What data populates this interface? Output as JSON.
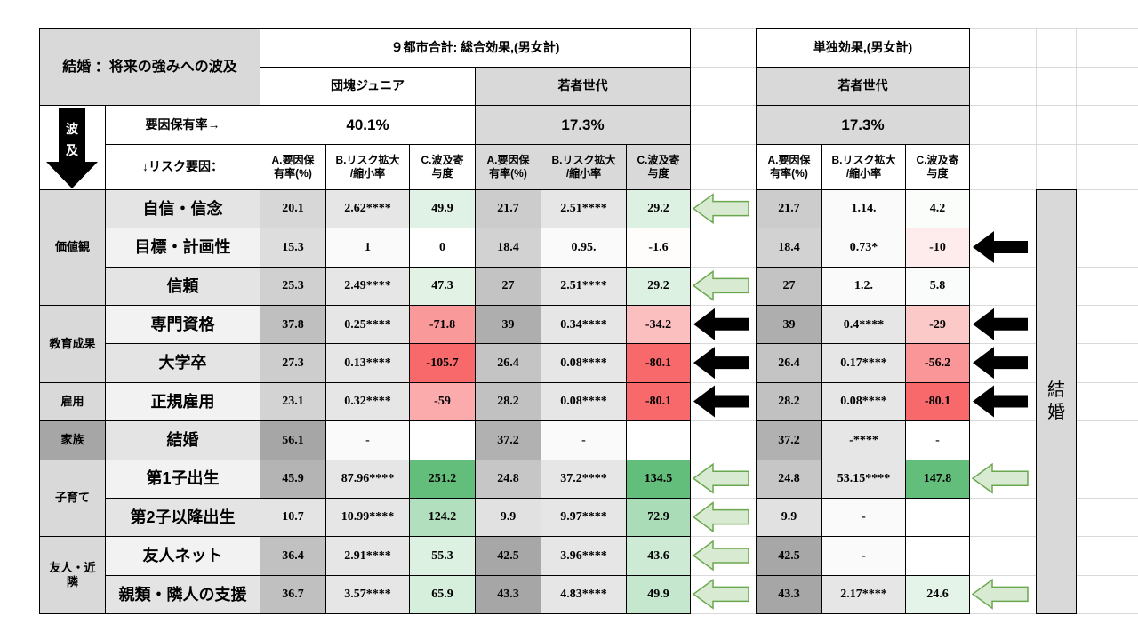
{
  "header": {
    "title": "結婚 ：将来の強みへの波及",
    "total_effect": "９都市合計: 総合効果,(男女計)",
    "single_effect": "単独効果,(男女計)",
    "blocks": [
      "団塊ジュニア",
      "若者世代",
      "若者世代"
    ],
    "rate_label": "要因保有率→",
    "rates": [
      "40.1%",
      "17.3%",
      "17.3%"
    ],
    "risk_label": "↓リスク要因：",
    "flow": [
      "波",
      "及"
    ],
    "sub_headers": [
      "A.要因保\n有率(%)",
      "B.リスク拡大\n/縮小率",
      "C.波及寄\n与度"
    ]
  },
  "side_label": "結\n婚",
  "groups": [
    {
      "label": "価値観",
      "rows": [
        {
          "factor": "自信・信念",
          "cells": [
            [
              "20.1",
              "2.62****",
              "49.9"
            ],
            [
              "21.7",
              "2.51****",
              "29.2"
            ],
            [
              "21.7",
              "1.14.",
              "4.2"
            ]
          ]
        },
        {
          "factor": "目標・計画性",
          "cells": [
            [
              "15.3",
              "1",
              "0"
            ],
            [
              "18.4",
              "0.95.",
              "-1.6"
            ],
            [
              "18.4",
              "0.73*",
              "-10"
            ]
          ]
        },
        {
          "factor": "信頼",
          "cells": [
            [
              "25.3",
              "2.49****",
              "47.3"
            ],
            [
              "27",
              "2.51****",
              "29.2"
            ],
            [
              "27",
              "1.2.",
              "5.8"
            ]
          ]
        }
      ]
    },
    {
      "label": "教育成果",
      "rows": [
        {
          "factor": "専門資格",
          "cells": [
            [
              "37.8",
              "0.25****",
              "-71.8"
            ],
            [
              "39",
              "0.34****",
              "-34.2"
            ],
            [
              "39",
              "0.4****",
              "-29"
            ]
          ]
        },
        {
          "factor": "大学卒",
          "cells": [
            [
              "27.3",
              "0.13****",
              "-105.7"
            ],
            [
              "26.4",
              "0.08****",
              "-80.1"
            ],
            [
              "26.4",
              "0.17****",
              "-56.2"
            ]
          ]
        }
      ]
    },
    {
      "label": "雇用",
      "rows": [
        {
          "factor": "正規雇用",
          "cells": [
            [
              "23.1",
              "0.32****",
              "-59"
            ],
            [
              "28.2",
              "0.08****",
              "-80.1"
            ],
            [
              "28.2",
              "0.08****",
              "-80.1"
            ]
          ]
        }
      ]
    },
    {
      "label": "家族",
      "rows": [
        {
          "factor": "結婚",
          "cells": [
            [
              "56.1",
              "-",
              null
            ],
            [
              "37.2",
              "-",
              null
            ],
            [
              "37.2",
              "-****",
              "-"
            ]
          ]
        }
      ]
    },
    {
      "label": "子育て",
      "rows": [
        {
          "factor": "第1子出生",
          "cells": [
            [
              "45.9",
              "87.96****",
              "251.2"
            ],
            [
              "24.8",
              "37.2****",
              "134.5"
            ],
            [
              "24.8",
              "53.15****",
              "147.8"
            ]
          ]
        },
        {
          "factor": "第2子以降出生",
          "cells": [
            [
              "10.7",
              "10.99****",
              "124.2"
            ],
            [
              "9.9",
              "9.97****",
              "72.9"
            ],
            [
              "9.9",
              "-",
              null
            ]
          ]
        }
      ]
    },
    {
      "label": "友人・近隣",
      "rows": [
        {
          "factor": "友人ネット",
          "cells": [
            [
              "36.4",
              "2.91****",
              "55.3"
            ],
            [
              "42.5",
              "3.96****",
              "43.6"
            ],
            [
              "42.5",
              "-",
              null
            ]
          ]
        },
        {
          "factor": "親類・隣人の支援",
          "cells": [
            [
              "36.7",
              "3.57****",
              "65.9"
            ],
            [
              "43.3",
              "4.83****",
              "49.9"
            ],
            [
              "43.3",
              "2.17****",
              "24.6"
            ]
          ]
        }
      ]
    }
  ]
}
